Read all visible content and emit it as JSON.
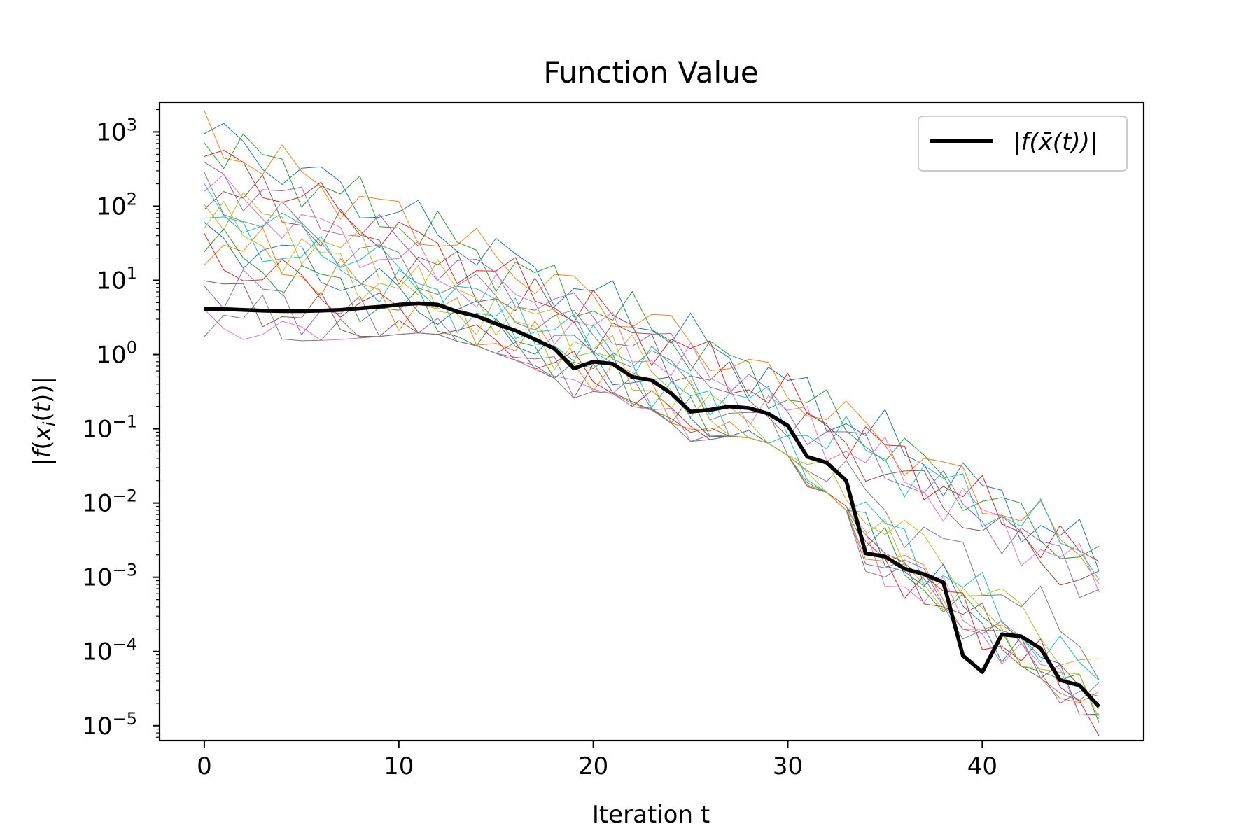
{
  "chart_data": {
    "type": "line",
    "title": "Function Value",
    "xlabel": "Iteration t",
    "ylabel": "|f(x_i(t))|",
    "ylabel_parts": {
      "pre": "|",
      "f": "f",
      "x": "x",
      "i": "i",
      "t": "t",
      "post": ")|"
    },
    "yscale": "log",
    "xlim": [
      -2.3,
      48.3
    ],
    "ylim_exp": [
      -5.2,
      3.4
    ],
    "x_ticks": [
      0,
      10,
      20,
      30,
      40
    ],
    "x_tick_labels": [
      "0",
      "10",
      "20",
      "30",
      "40"
    ],
    "y_tick_exps": [
      3,
      2,
      1,
      0,
      -1,
      -2,
      -3,
      -4,
      -5
    ],
    "y_tick_labels": [
      {
        "base": "10",
        "exp": "3"
      },
      {
        "base": "10",
        "exp": "2"
      },
      {
        "base": "10",
        "exp": "1"
      },
      {
        "base": "10",
        "exp": "0"
      },
      {
        "base": "10",
        "exp": "−1"
      },
      {
        "base": "10",
        "exp": "−2"
      },
      {
        "base": "10",
        "exp": "−3"
      },
      {
        "base": "10",
        "exp": "−4"
      },
      {
        "base": "10",
        "exp": "−5"
      }
    ],
    "legend": {
      "location": "upper right",
      "entries": [
        {
          "label": "|f(x̄(t))|"
        }
      ]
    },
    "highlight_color": "#000000",
    "highlight": {
      "name": "|f(x̄(t))|",
      "x": [
        0,
        1,
        2,
        3,
        4,
        5,
        6,
        7,
        8,
        9,
        10,
        11,
        12,
        13,
        14,
        15,
        16,
        17,
        18,
        19,
        20,
        21,
        22,
        23,
        24,
        25,
        26,
        27,
        28,
        29,
        30,
        31,
        32,
        33,
        34,
        35,
        36,
        37,
        38,
        39,
        40,
        41,
        42,
        43,
        44,
        45,
        46
      ],
      "y": [
        4.1,
        4.1,
        4.0,
        3.9,
        3.85,
        3.85,
        3.9,
        4.0,
        4.2,
        4.4,
        4.7,
        4.9,
        4.7,
        3.8,
        3.3,
        2.6,
        2.1,
        1.6,
        1.2,
        0.65,
        0.8,
        0.75,
        0.5,
        0.45,
        0.3,
        0.17,
        0.18,
        0.2,
        0.19,
        0.16,
        0.11,
        0.042,
        0.035,
        0.02,
        0.0021,
        0.0019,
        0.0013,
        0.0011,
        0.00085,
        8.8e-05,
        5.3e-05,
        0.00017,
        0.00016,
        0.00011,
        4.1e-05,
        3.5e-05,
        1.8e-05
      ]
    },
    "series_colors": [
      "#1f77b4",
      "#ff7f0e",
      "#2ca02c",
      "#d62728",
      "#9467bd",
      "#8c564b",
      "#e377c2",
      "#7f7f7f",
      "#bcbd22",
      "#17becf"
    ],
    "series": [
      {
        "start": 950,
        "mid": 5.0,
        "end": 0.0018
      },
      {
        "start": 880,
        "mid": 4.5,
        "end": 0.0017
      },
      {
        "start": 860,
        "mid": 4.0,
        "end": 0.0015
      },
      {
        "start": 440,
        "mid": 3.0,
        "end": 0.0013
      },
      {
        "start": 310,
        "mid": 2.5,
        "end": 0.0008
      },
      {
        "start": 210,
        "mid": 2.0,
        "end": 0.0007
      },
      {
        "start": 170,
        "mid": 1.8,
        "end": 0.0009
      },
      {
        "start": 140,
        "mid": 1.5,
        "end": 9e-05
      },
      {
        "start": 125,
        "mid": 1.2,
        "end": 5e-05
      },
      {
        "start": 58,
        "mid": 1.0,
        "end": 3.5e-05
      },
      {
        "start": 45,
        "mid": 0.8,
        "end": 1.6e-05
      },
      {
        "start": 38,
        "mid": 0.6,
        "end": 1.5e-05
      },
      {
        "start": 28,
        "mid": 0.5,
        "end": 1.5e-05
      },
      {
        "start": 23,
        "mid": 0.4,
        "end": 1.6e-05
      },
      {
        "start": 10,
        "mid": 0.35,
        "end": 1.7e-05
      },
      {
        "start": 7.5,
        "mid": 0.3,
        "end": 1.6e-05
      },
      {
        "start": 2.8,
        "mid": 0.25,
        "end": 1.5e-05
      },
      {
        "start": 4.1,
        "mid": 0.2,
        "end": 1.8e-05
      },
      {
        "start": 62,
        "mid": 0.9,
        "end": 1.6e-05
      },
      {
        "start": 120,
        "mid": 1.1,
        "end": 0.002
      }
    ]
  }
}
